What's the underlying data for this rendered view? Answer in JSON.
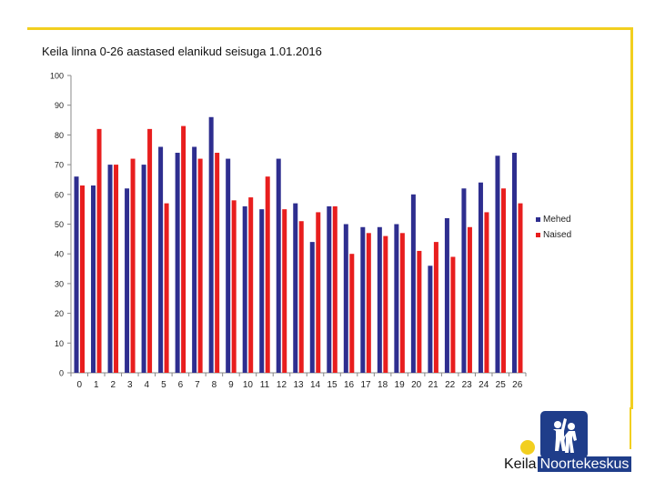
{
  "page": {
    "title": "Keila linna 0-26 aastased elanikud seisuga 1.01.2016"
  },
  "colors": {
    "series_0": "#2e2e8f",
    "series_1": "#e81e1e",
    "accent": "#f2cf1f",
    "brand": "#1f3d8a"
  },
  "logo": {
    "city": "Keila",
    "org": "Noortekeskus"
  },
  "chart_data": {
    "type": "bar",
    "title": "Keila linna 0-26 aastased elanikud seisuga 1.01.2016",
    "xlabel": "",
    "ylabel": "",
    "ylim": [
      0,
      100
    ],
    "yticks": [
      0,
      10,
      20,
      30,
      40,
      50,
      60,
      70,
      80,
      90,
      100
    ],
    "grid": false,
    "legend": "right",
    "categories": [
      "0",
      "1",
      "2",
      "3",
      "4",
      "5",
      "6",
      "7",
      "8",
      "9",
      "10",
      "11",
      "12",
      "13",
      "14",
      "15",
      "16",
      "17",
      "18",
      "19",
      "20",
      "21",
      "22",
      "23",
      "24",
      "25",
      "26"
    ],
    "series": [
      {
        "name": "Mehed",
        "values": [
          66,
          63,
          70,
          62,
          70,
          76,
          74,
          76,
          86,
          72,
          56,
          55,
          72,
          57,
          44,
          56,
          50,
          49,
          49,
          50,
          60,
          36,
          52,
          62,
          64,
          73,
          74
        ]
      },
      {
        "name": "Naised",
        "values": [
          63,
          82,
          70,
          72,
          82,
          57,
          83,
          72,
          74,
          58,
          59,
          66,
          55,
          51,
          54,
          56,
          40,
          47,
          46,
          47,
          41,
          44,
          39,
          49,
          54,
          62,
          57
        ]
      }
    ]
  }
}
